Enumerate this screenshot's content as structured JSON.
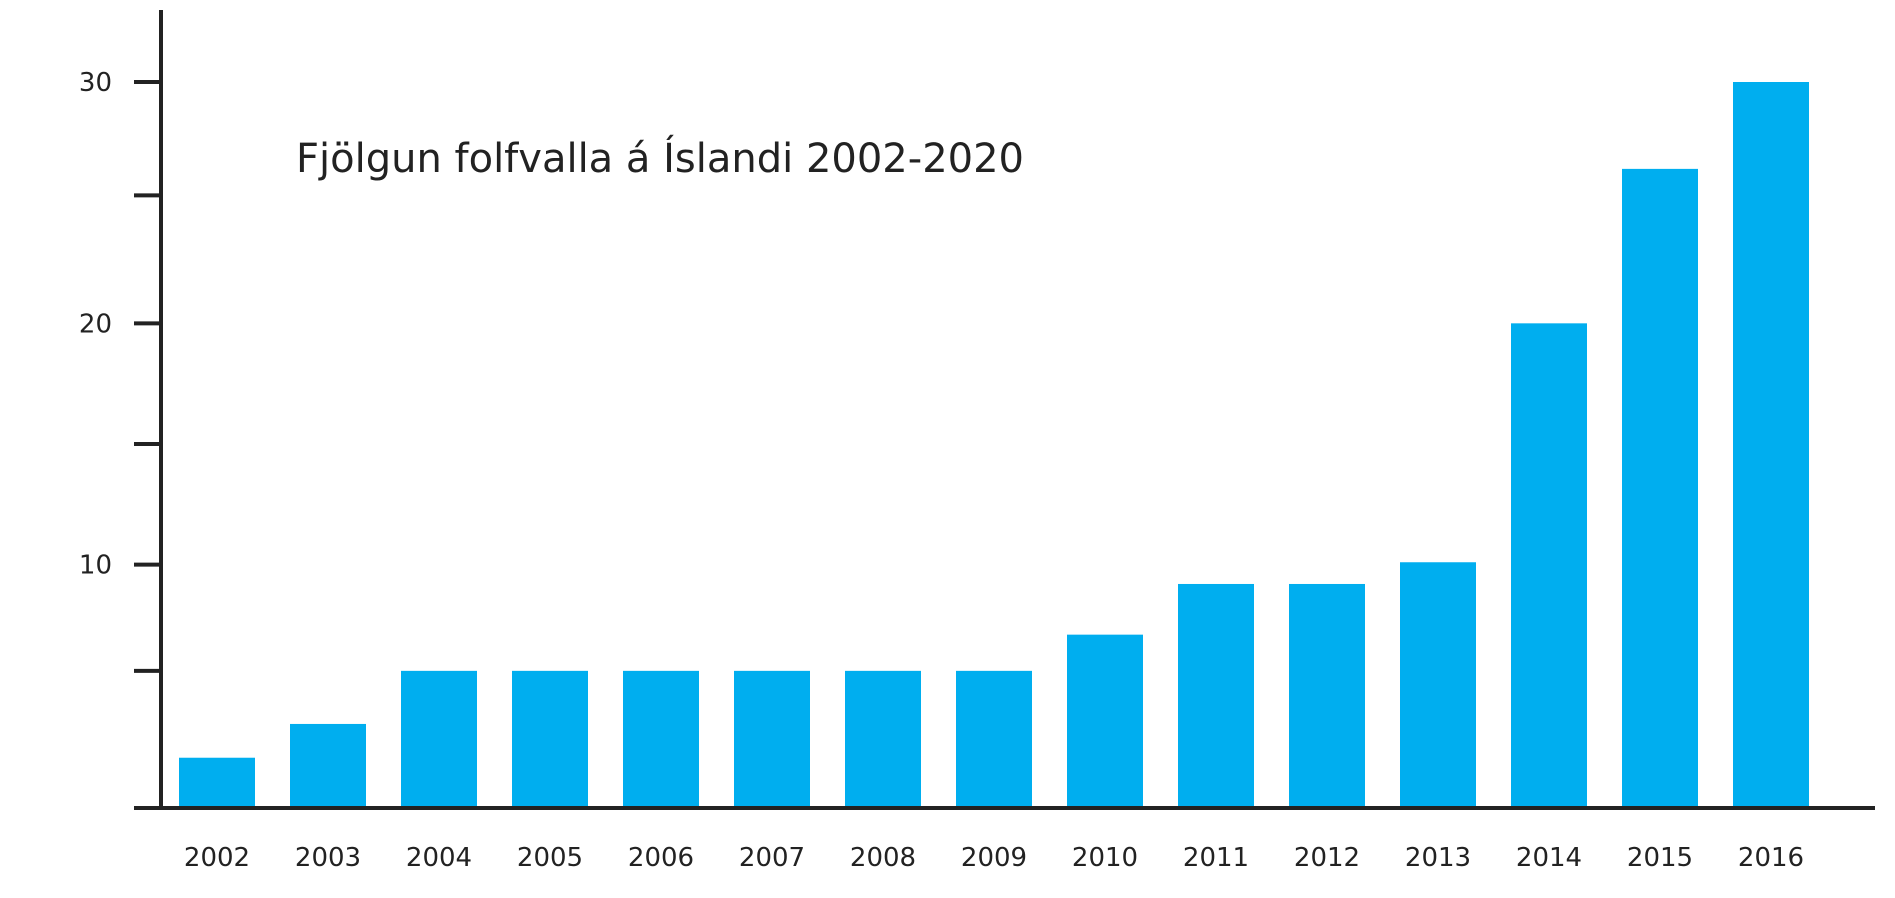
{
  "chart_data": {
    "type": "bar",
    "title": "Fjölgun folfvalla á Íslandi 2002-2020",
    "xlabel": "",
    "ylabel": "",
    "categories": [
      "2002",
      "2003",
      "2004",
      "2005",
      "2006",
      "2007",
      "2008",
      "2009",
      "2010",
      "2011",
      "2012",
      "2013",
      "2014",
      "2015",
      "2016"
    ],
    "values": [
      2,
      3.4,
      5.6,
      5.6,
      5.6,
      5.6,
      5.6,
      5.6,
      7.1,
      9.2,
      9.2,
      10.1,
      20,
      26.4,
      30
    ],
    "ylim": [
      0,
      33
    ],
    "yticks_major": [
      10,
      20,
      30
    ],
    "yticks_minor": [
      5.6,
      15,
      25.3
    ],
    "grid": false,
    "legend": "none",
    "bar_color": "#00AEEF"
  }
}
